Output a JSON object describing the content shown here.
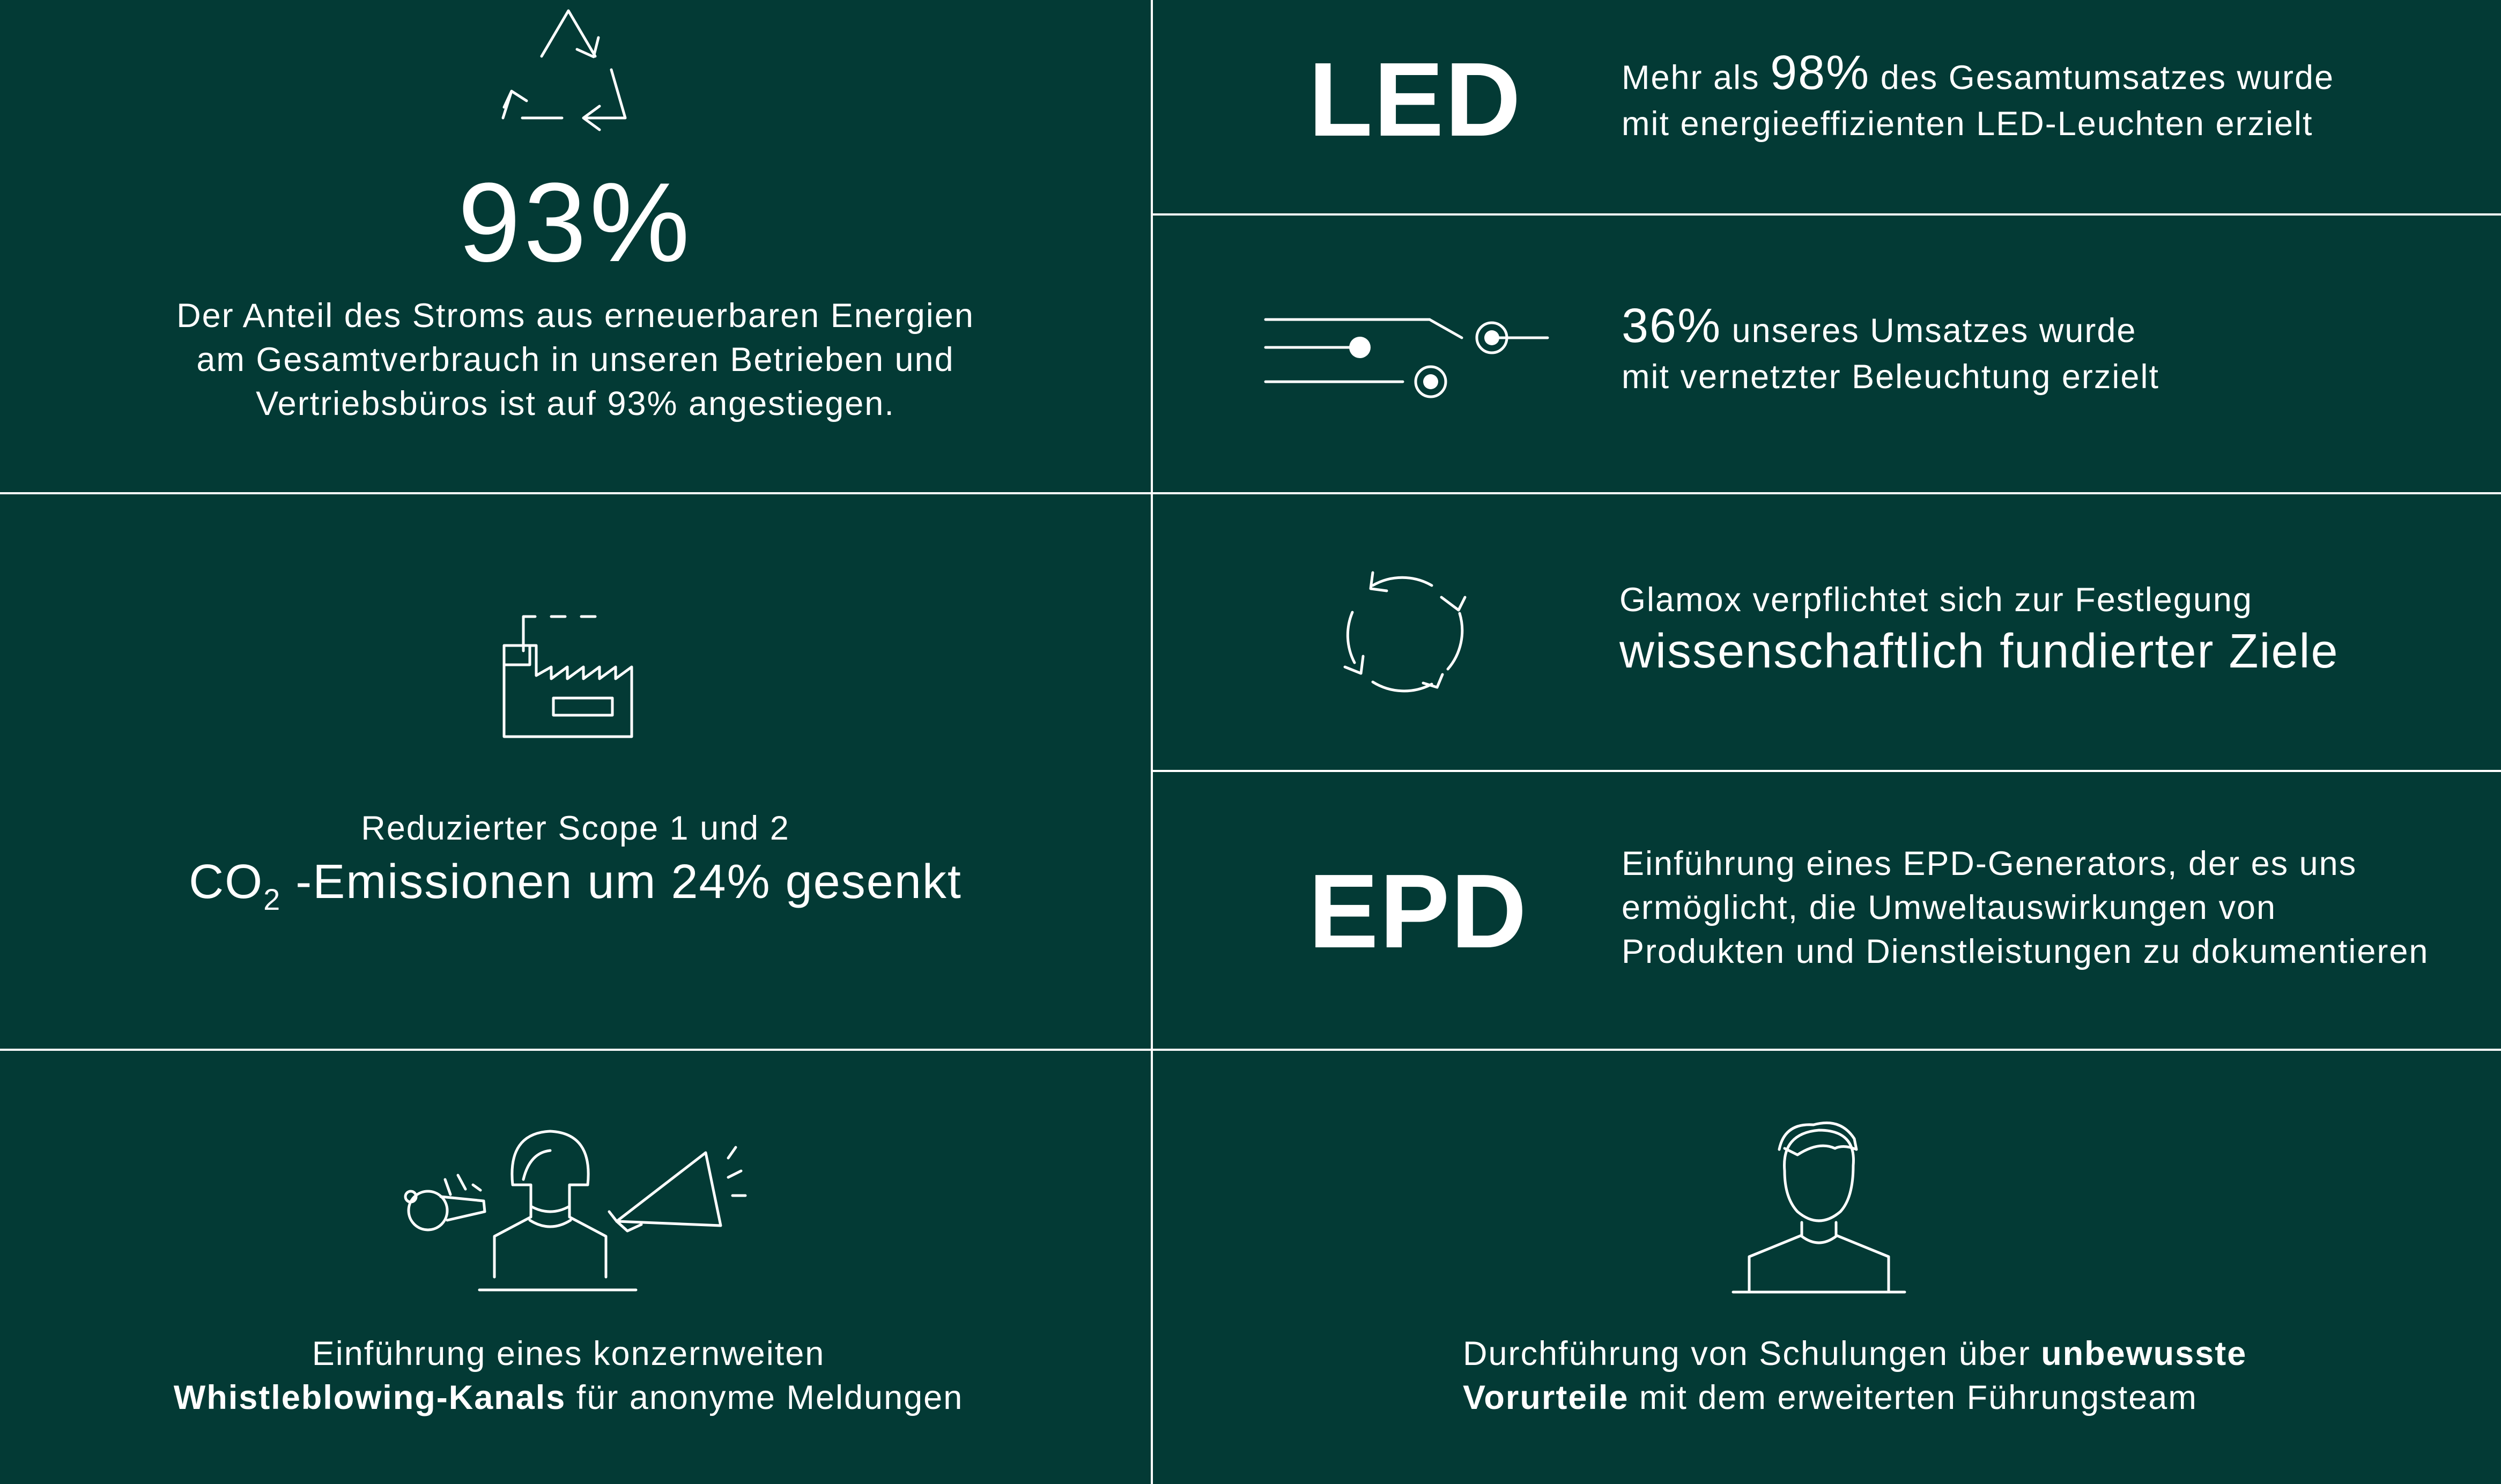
{
  "renewable": {
    "value": "93%",
    "line1": "Der Anteil des Stroms aus erneuerbaren Energien",
    "line2": "am Gesamtverbrauch in unseren Betrieben und",
    "line3": "Vertriebsbüros ist auf 93% angestiegen."
  },
  "led": {
    "logo": "LED",
    "pre": "Mehr als ",
    "value": "98%",
    "post": " des Gesamtumsatzes wurde",
    "line2": "mit energieeffizienten LED-Leuchten erzielt"
  },
  "connected": {
    "value": "36%",
    "post": " unseres Umsatzes wurde",
    "line2": "mit vernetzter Beleuchtung erzielt"
  },
  "emissions": {
    "line1": "Reduzierter Scope 1 und 2",
    "co": "CO",
    "sub": "2",
    "rest": " -Emissionen um 24% gesenkt"
  },
  "science": {
    "line1": "Glamox verpflichtet sich zur Festlegung",
    "line2": "wissenschaftlich fundierter Ziele"
  },
  "epd": {
    "logo": "EPD",
    "line1": "Einführung eines EPD-Generators, der es uns",
    "line2": "ermöglicht, die Umweltauswirkungen von",
    "line3": "Produkten und Dienstleistungen zu dokumentieren"
  },
  "whistle": {
    "line1": "Einführung eines konzernweiten",
    "bold": "Whistleblowing-Kanals",
    "rest": " für anonyme Meldungen"
  },
  "training": {
    "pre": "Durchführung von Schulungen über ",
    "bold1": "unbewusste",
    "bold2": "Vorurteile",
    "rest": " mit dem erweiterten Führungsteam"
  },
  "icons": [
    "recycle-icon",
    "switch-icon",
    "refresh-icon",
    "factory-icon",
    "whistleblower-icon",
    "person-icon"
  ],
  "colors": {
    "background": "#033a35",
    "foreground": "#ffffff"
  }
}
